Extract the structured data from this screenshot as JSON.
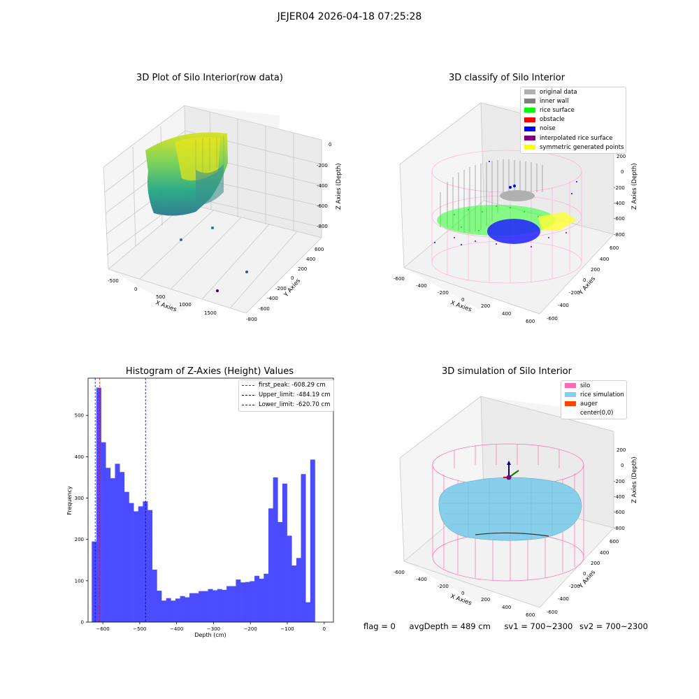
{
  "suptitle": "JEJER04 2026-04-18 07:25:28",
  "panels": {
    "raw": {
      "title": "3D Plot of Silo Interior(row data)",
      "xlabel": "X Axies",
      "ylabel": "Y Axies",
      "zlabel": "Z Axies (Depth)",
      "xticks": [
        "-500",
        "0",
        "500",
        "1000",
        "1500"
      ],
      "yticks": [
        "600",
        "400",
        "200",
        "0",
        "-200",
        "-400",
        "-600",
        "-800"
      ],
      "zticks": [
        "0",
        "-200",
        "-400",
        "-600",
        "-800"
      ]
    },
    "classify": {
      "title": "3D classify of Silo Interior",
      "xlabel": "X Axies",
      "ylabel": "Y Axies",
      "zlabel": "Z Axies (Depth)",
      "xticks": [
        "-600",
        "-400",
        "-200",
        "0",
        "200",
        "400",
        "600"
      ],
      "yticks": [
        "600",
        "400",
        "200",
        "0",
        "-200",
        "-400",
        "-600"
      ],
      "zticks": [
        "200",
        "0",
        "-200",
        "-400",
        "-600",
        "-800"
      ],
      "legend": [
        {
          "label": "original data",
          "color": "#b0b0b0"
        },
        {
          "label": "inner wall",
          "color": "#808080"
        },
        {
          "label": "rice surface",
          "color": "#00ff00"
        },
        {
          "label": "obstacle",
          "color": "#ff0000"
        },
        {
          "label": "noise",
          "color": "#0000ff"
        },
        {
          "label": "interpolated rice surface",
          "color": "#800080"
        },
        {
          "label": "symmetric generated points",
          "color": "#ffff00"
        }
      ]
    },
    "simulation": {
      "title": "3D simulation of Silo Interior",
      "xlabel": "X Axies",
      "ylabel": "Y Axies",
      "zlabel": "Z Axies (Depth)",
      "xticks": [
        "-600",
        "-400",
        "-200",
        "0",
        "200",
        "400",
        "600"
      ],
      "yticks": [
        "600",
        "400",
        "200",
        "0",
        "-200",
        "-400",
        "-600"
      ],
      "zticks": [
        "200",
        "0",
        "-200",
        "-400",
        "-600",
        "-800"
      ],
      "legend": [
        {
          "label": "silo",
          "color": "#ff69b4"
        },
        {
          "label": "rice simulation",
          "color": "#87ceeb"
        },
        {
          "label": "auger",
          "color": "#ff4500"
        },
        {
          "label": "center(0,0)",
          "color": ""
        }
      ]
    }
  },
  "status": {
    "flag": "flag = 0",
    "avg_depth": "avgDepth = 489 cm",
    "sv1": "sv1 = 700~2300",
    "sv2": "sv2 = 700~2300"
  },
  "chart_data": {
    "type": "bar",
    "title": "Histogram of Z-Axies (Height) Values",
    "xlabel": "Depth (cm)",
    "ylabel": "Frequency",
    "xlim": [
      -640,
      25
    ],
    "ylim": [
      0,
      590
    ],
    "xticks": [
      -600,
      -500,
      -400,
      -300,
      -200,
      -100,
      0
    ],
    "yticks": [
      0,
      100,
      200,
      300,
      400,
      500
    ],
    "bar_color": "#4b4bff",
    "bins_left": -630,
    "bin_width": 12.6,
    "values": [
      195,
      567,
      435,
      373,
      348,
      383,
      363,
      315,
      288,
      268,
      280,
      292,
      271,
      127,
      76,
      52,
      58,
      52,
      57,
      63,
      60,
      70,
      70,
      75,
      75,
      80,
      77,
      80,
      78,
      87,
      87,
      103,
      96,
      97,
      99,
      112,
      105,
      117,
      275,
      350,
      242,
      335,
      209,
      137,
      155,
      358,
      48,
      393
    ],
    "vlines": [
      {
        "label": "first_peak: -608.29 cm",
        "x": -608.29,
        "color": "#ff0000"
      },
      {
        "label": "Upper_limit: -484.19 cm",
        "x": -484.19,
        "color": "#00008b"
      },
      {
        "label": "Lower_limit: -620.70 cm",
        "x": -620.7,
        "color": "#0000ff"
      }
    ],
    "legend_position": "top-right"
  }
}
